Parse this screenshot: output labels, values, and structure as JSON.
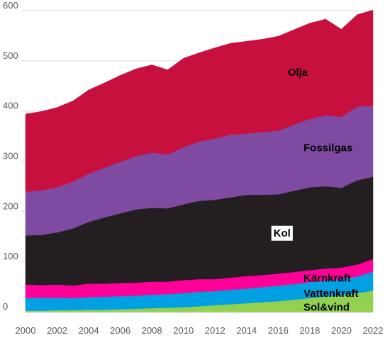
{
  "chart_data": {
    "type": "area",
    "stacked": true,
    "title": "",
    "xlabel": "",
    "ylabel": "",
    "x": [
      2000,
      2001,
      2002,
      2003,
      2004,
      2005,
      2006,
      2007,
      2008,
      2009,
      2010,
      2011,
      2012,
      2013,
      2014,
      2015,
      2016,
      2017,
      2018,
      2019,
      2020,
      2021,
      2022
    ],
    "x_ticks": [
      2000,
      2002,
      2004,
      2006,
      2008,
      2010,
      2012,
      2014,
      2016,
      2018,
      2020,
      2022
    ],
    "ylim": [
      0,
      600
    ],
    "y_ticks": [
      0,
      100,
      200,
      300,
      400,
      500,
      600
    ],
    "grid": "horizontal",
    "series": [
      {
        "name": "Sol&vind",
        "color": "#92d050",
        "values": [
          2,
          2,
          3,
          3,
          4,
          4,
          5,
          6,
          7,
          8,
          9,
          11,
          13,
          15,
          17,
          19,
          21,
          24,
          27,
          30,
          32,
          37,
          42
        ]
      },
      {
        "name": "Vattenkraft",
        "color": "#00a0e3",
        "values": [
          25,
          26,
          25,
          24,
          25,
          26,
          26,
          26,
          27,
          27,
          28,
          29,
          28,
          29,
          29,
          30,
          31,
          31,
          32,
          32,
          33,
          33,
          38
        ]
      },
      {
        "name": "Kärnkraft",
        "color": "#ff0099",
        "values": [
          27,
          25,
          26,
          25,
          27,
          26,
          26,
          26,
          26,
          25,
          26,
          25,
          24,
          24,
          25,
          24,
          24,
          24,
          24,
          24,
          23,
          24,
          25
        ]
      },
      {
        "name": "Kol",
        "color": "#231f20",
        "values": [
          98,
          100,
          104,
          114,
          123,
          132,
          139,
          146,
          147,
          146,
          151,
          156,
          158,
          160,
          162,
          160,
          158,
          162,
          165,
          164,
          159,
          168,
          164
        ]
      },
      {
        "name": "Fossilgas",
        "color": "#7f4aa1",
        "values": [
          87,
          89,
          90,
          93,
          96,
          99,
          103,
          106,
          110,
          107,
          114,
          118,
          122,
          125,
          122,
          125,
          127,
          132,
          136,
          142,
          141,
          147,
          141
        ]
      },
      {
        "name": "Olja",
        "color": "#c8103f",
        "values": [
          155,
          157,
          159,
          161,
          167,
          169,
          172,
          174,
          175,
          169,
          177,
          177,
          181,
          182,
          184,
          185,
          188,
          189,
          191,
          191,
          175,
          183,
          191
        ]
      }
    ]
  }
}
